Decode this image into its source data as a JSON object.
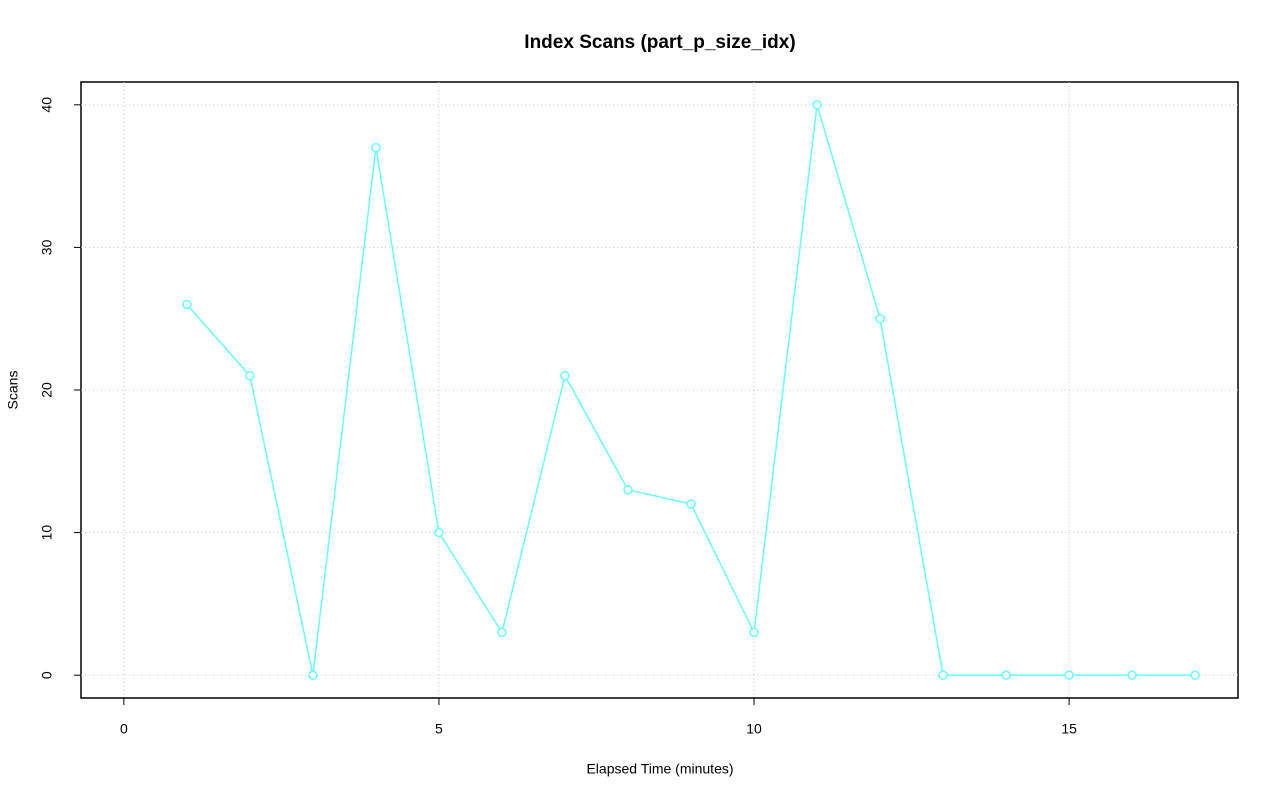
{
  "chart_data": {
    "type": "line",
    "title": "Index Scans (part_p_size_idx)",
    "x_label": "Elapsed Time (minutes)",
    "y_label": "Scans",
    "x": [
      1,
      2,
      3,
      4,
      5,
      6,
      7,
      8,
      9,
      10,
      11,
      12,
      13,
      14,
      15,
      16,
      17
    ],
    "series": [
      {
        "name": "part_p_size_idx",
        "color": "#66ffff",
        "values": [
          26,
          21,
          0,
          37,
          10,
          3,
          21,
          13,
          12,
          3,
          40,
          25,
          0,
          0,
          0,
          0,
          0
        ]
      }
    ],
    "xlim": [
      -0.68,
      17.68
    ],
    "ylim": [
      -1.6,
      41.6
    ],
    "xticks": [
      0,
      5,
      10,
      15
    ],
    "yticks": [
      0,
      10,
      20,
      30,
      40
    ],
    "grid": true
  }
}
